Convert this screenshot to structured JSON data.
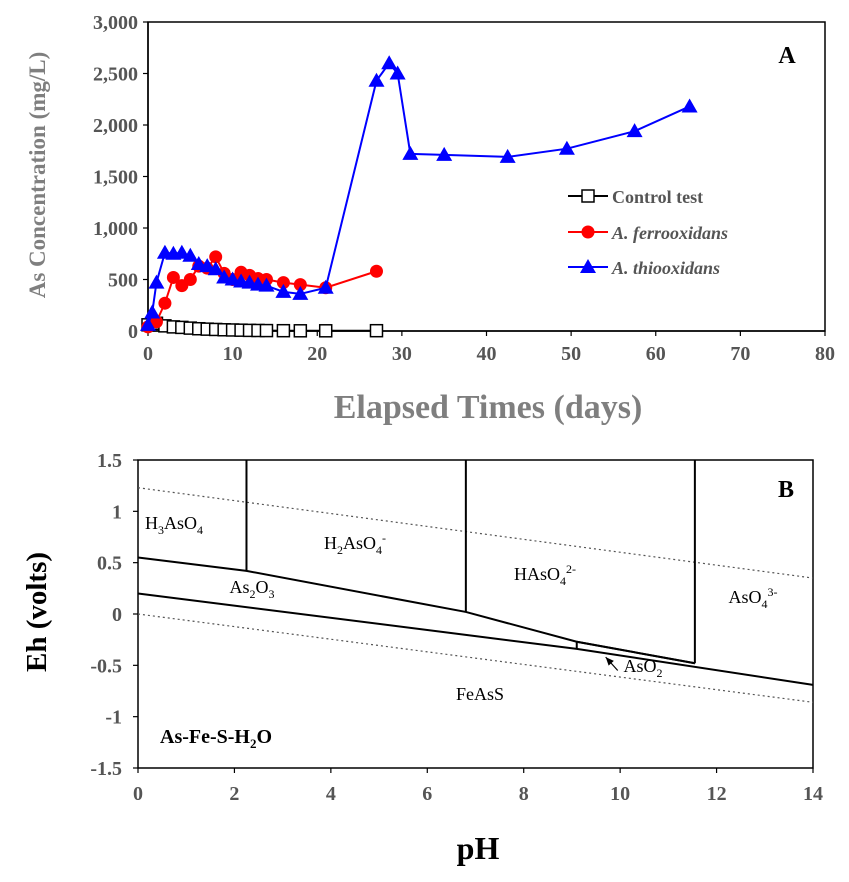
{
  "chart_data": [
    {
      "panel_label": "A",
      "type": "line",
      "xlabel": "Elapsed Times (days)",
      "ylabel": "As Concentration (mg/L)",
      "xlim": [
        0,
        80
      ],
      "ylim": [
        0,
        3000
      ],
      "x_ticks": [
        "0",
        "10",
        "20",
        "30",
        "40",
        "50",
        "60",
        "70",
        "80"
      ],
      "y_ticks": [
        "0",
        "500",
        "1,000",
        "1,500",
        "2,000",
        "2,500",
        "3,000"
      ],
      "grid": false,
      "legend_position": "right",
      "series": [
        {
          "name": "Control test",
          "color": "#000000",
          "marker": "open-square",
          "x": [
            0,
            1,
            2,
            3,
            4,
            5,
            6,
            7,
            8,
            9,
            10,
            11,
            12,
            13,
            14,
            16,
            18,
            21,
            27
          ],
          "y": [
            60,
            75,
            50,
            40,
            35,
            28,
            22,
            18,
            15,
            12,
            10,
            8,
            6,
            5,
            4,
            3,
            2,
            2,
            3
          ]
        },
        {
          "name": "A. ferrooxidans",
          "color": "#ff0000",
          "marker": "filled-circle",
          "x": [
            0,
            1,
            2,
            3,
            4,
            5,
            6,
            7,
            8,
            9,
            10,
            11,
            12,
            13,
            14,
            16,
            18,
            21,
            27
          ],
          "y": [
            40,
            90,
            270,
            520,
            440,
            500,
            630,
            610,
            720,
            560,
            500,
            570,
            540,
            510,
            500,
            470,
            450,
            420,
            580
          ]
        },
        {
          "name": "A. thiooxidans",
          "color": "#0000ff",
          "marker": "filled-triangle",
          "x": [
            0,
            0.5,
            1,
            2,
            3,
            4,
            5,
            6,
            7,
            8,
            9,
            10,
            11,
            12,
            13,
            14,
            16,
            18,
            21,
            27,
            28.5,
            29.5,
            31,
            35,
            42.5,
            49.5,
            57.5,
            64
          ],
          "y": [
            60,
            180,
            470,
            760,
            750,
            760,
            730,
            650,
            630,
            600,
            520,
            500,
            480,
            470,
            450,
            440,
            380,
            360,
            420,
            2430,
            2600,
            2500,
            1720,
            1710,
            1690,
            1770,
            1940,
            2180
          ]
        }
      ]
    },
    {
      "panel_label": "B",
      "type": "line",
      "subtype": "Eh-pH (Pourbaix) diagram",
      "xlabel": "pH",
      "ylabel": "Eh (volts)",
      "xlim": [
        0,
        14
      ],
      "ylim": [
        -1.5,
        1.5
      ],
      "x_ticks": [
        "0",
        "2",
        "4",
        "6",
        "8",
        "10",
        "12",
        "14"
      ],
      "y_ticks": [
        "-1.5",
        "-1",
        "-0.5",
        "0",
        "0.5",
        "1",
        "1.5"
      ],
      "grid": false,
      "system_label": "As-Fe-S-H2O",
      "region_labels": [
        {
          "id": "h3aso4",
          "text": "H3AsO4",
          "x": 0.8,
          "y": 0.9
        },
        {
          "id": "h2aso4",
          "text": "H2AsO4-",
          "x": 3.7,
          "y": 0.67
        },
        {
          "id": "haso4",
          "text": "HAsO42-",
          "x": 8.3,
          "y": 0.32
        },
        {
          "id": "aso4",
          "text": "AsO43-",
          "x": 12.7,
          "y": -0.13
        },
        {
          "id": "as2o3",
          "text": "As2O3",
          "x": 1.8,
          "y": 0.22
        },
        {
          "id": "feass",
          "text": "FeAsS",
          "x": 7.0,
          "y": -0.78
        },
        {
          "id": "aso2",
          "text": "AsO2-",
          "x": 10.0,
          "y": -0.67
        }
      ],
      "boundaries": [
        {
          "name": "upper",
          "x": [
            0,
            2.25,
            6.8,
            9.1,
            11.55
          ],
          "y": [
            0.55,
            0.42,
            0.02,
            -0.27,
            -0.48
          ]
        },
        {
          "name": "lower",
          "x": [
            0,
            9.1,
            14
          ],
          "y": [
            0.2,
            -0.34,
            -0.69
          ]
        },
        {
          "name": "aso2-top",
          "x": [
            9.1,
            11.55
          ],
          "y": [
            -0.27,
            -0.48
          ]
        },
        {
          "name": "v-2.25",
          "x": [
            2.25,
            2.25
          ],
          "y": [
            1.5,
            0.42
          ]
        },
        {
          "name": "v-6.8",
          "x": [
            6.8,
            6.8
          ],
          "y": [
            1.5,
            0.02
          ]
        },
        {
          "name": "v-11.55",
          "x": [
            11.55,
            11.55
          ],
          "y": [
            1.5,
            -0.48
          ]
        },
        {
          "name": "v-9.1",
          "x": [
            9.1,
            9.1
          ],
          "y": [
            -0.27,
            -0.34
          ]
        }
      ],
      "water_lines": [
        {
          "name": "o2-water",
          "x": [
            0,
            14
          ],
          "y": [
            1.23,
            0.35
          ]
        },
        {
          "name": "water-h2",
          "x": [
            0,
            14
          ],
          "y": [
            0.0,
            -0.86
          ]
        }
      ],
      "arrow": {
        "from": [
          9.95,
          -0.55
        ],
        "to": [
          9.7,
          -0.42
        ]
      }
    }
  ]
}
